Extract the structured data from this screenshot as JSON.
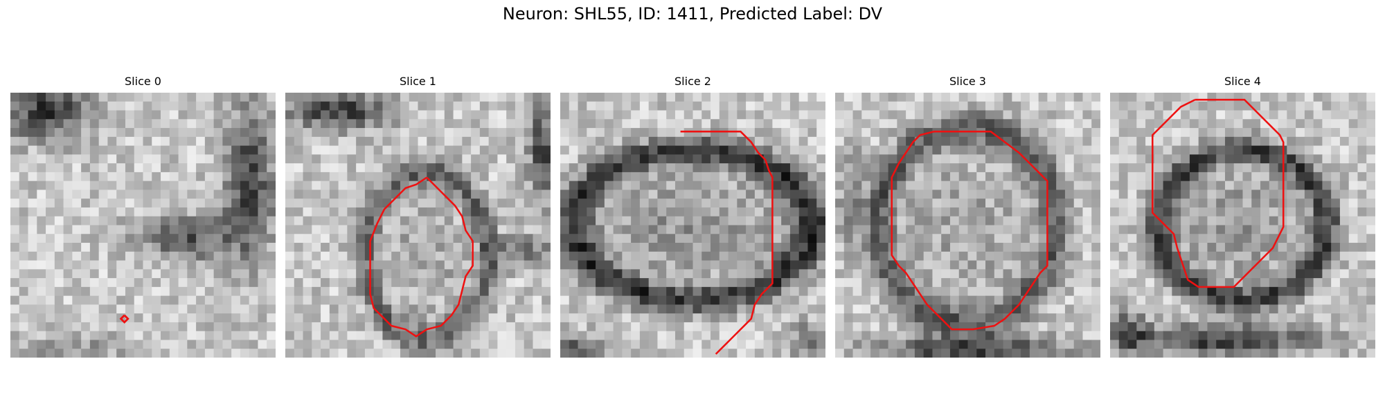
{
  "figure": {
    "title": "Neuron: SHL55, ID: 1411, Predicted Label: DV"
  },
  "panels": [
    {
      "title": "Slice 0",
      "contour": [
        [
          129,
          252
        ],
        [
          133,
          256
        ],
        [
          129,
          260
        ],
        [
          125,
          256
        ]
      ]
    },
    {
      "title": "Slice 1",
      "contour": [
        [
          160,
          96
        ],
        [
          168,
          104
        ],
        [
          176,
          112
        ],
        [
          184,
          120
        ],
        [
          192,
          128
        ],
        [
          200,
          140
        ],
        [
          204,
          156
        ],
        [
          212,
          168
        ],
        [
          212,
          196
        ],
        [
          204,
          208
        ],
        [
          200,
          224
        ],
        [
          196,
          240
        ],
        [
          188,
          252
        ],
        [
          176,
          264
        ],
        [
          160,
          268
        ],
        [
          148,
          276
        ],
        [
          136,
          268
        ],
        [
          120,
          264
        ],
        [
          112,
          256
        ],
        [
          100,
          244
        ],
        [
          96,
          228
        ],
        [
          96,
          168
        ],
        [
          104,
          148
        ],
        [
          112,
          132
        ],
        [
          124,
          120
        ],
        [
          136,
          108
        ],
        [
          148,
          104
        ]
      ]
    },
    {
      "title": "Slice 2",
      "contour": [
        [
          136,
          44
        ],
        [
          204,
          44
        ],
        [
          216,
          56
        ],
        [
          224,
          68
        ],
        [
          232,
          76
        ],
        [
          236,
          88
        ],
        [
          240,
          96
        ],
        [
          240,
          216
        ],
        [
          228,
          228
        ],
        [
          220,
          240
        ],
        [
          216,
          256
        ],
        [
          208,
          264
        ],
        [
          200,
          272
        ],
        [
          192,
          280
        ],
        [
          184,
          288
        ],
        [
          176,
          296
        ]
      ]
    },
    {
      "title": "Slice 3",
      "contour": [
        [
          112,
          44
        ],
        [
          176,
          44
        ],
        [
          192,
          56
        ],
        [
          208,
          68
        ],
        [
          220,
          80
        ],
        [
          232,
          92
        ],
        [
          240,
          100
        ],
        [
          240,
          196
        ],
        [
          232,
          204
        ],
        [
          224,
          216
        ],
        [
          216,
          228
        ],
        [
          208,
          240
        ],
        [
          200,
          248
        ],
        [
          192,
          256
        ],
        [
          180,
          264
        ],
        [
          156,
          268
        ],
        [
          132,
          268
        ],
        [
          120,
          256
        ],
        [
          112,
          248
        ],
        [
          104,
          240
        ],
        [
          96,
          228
        ],
        [
          88,
          216
        ],
        [
          80,
          204
        ],
        [
          72,
          196
        ],
        [
          64,
          184
        ],
        [
          64,
          96
        ],
        [
          72,
          80
        ],
        [
          80,
          68
        ],
        [
          88,
          56
        ],
        [
          96,
          48
        ]
      ]
    },
    {
      "title": "Slice 4",
      "contour": [
        [
          96,
          8
        ],
        [
          152,
          8
        ],
        [
          168,
          24
        ],
        [
          184,
          40
        ],
        [
          192,
          48
        ],
        [
          196,
          56
        ],
        [
          196,
          152
        ],
        [
          192,
          160
        ],
        [
          188,
          168
        ],
        [
          184,
          176
        ],
        [
          176,
          184
        ],
        [
          168,
          192
        ],
        [
          160,
          200
        ],
        [
          152,
          208
        ],
        [
          140,
          220
        ],
        [
          100,
          220
        ],
        [
          88,
          212
        ],
        [
          84,
          200
        ],
        [
          80,
          188
        ],
        [
          76,
          176
        ],
        [
          72,
          160
        ],
        [
          64,
          152
        ],
        [
          56,
          144
        ],
        [
          48,
          136
        ],
        [
          48,
          48
        ],
        [
          56,
          40
        ],
        [
          64,
          32
        ],
        [
          72,
          24
        ],
        [
          80,
          16
        ]
      ]
    }
  ]
}
